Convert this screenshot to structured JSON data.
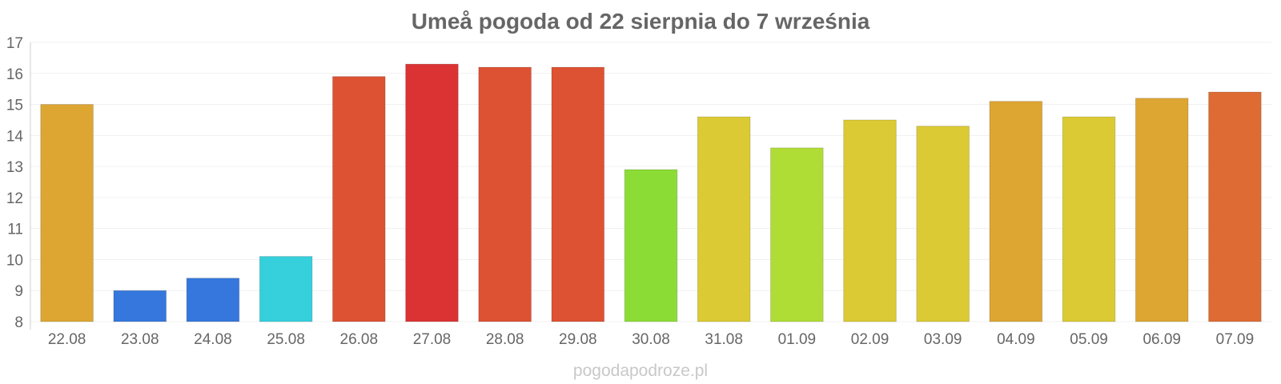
{
  "chart_data": {
    "type": "bar",
    "title": "Umeå pogoda od 22 sierpnia do 7 września",
    "xlabel": "",
    "ylabel": "",
    "ylim": [
      8,
      17
    ],
    "yticks": [
      8,
      9,
      10,
      11,
      12,
      13,
      14,
      15,
      16,
      17
    ],
    "categories": [
      "22.08",
      "23.08",
      "24.08",
      "25.08",
      "26.08",
      "27.08",
      "28.08",
      "29.08",
      "30.08",
      "31.08",
      "01.09",
      "02.09",
      "03.09",
      "04.09",
      "05.09",
      "06.09",
      "07.09"
    ],
    "values": [
      15.0,
      9.0,
      9.4,
      10.1,
      15.9,
      16.3,
      16.2,
      16.2,
      12.9,
      14.6,
      13.6,
      14.5,
      14.3,
      15.1,
      14.6,
      15.2,
      15.4
    ],
    "colors": [
      "#dda633",
      "#3577dc",
      "#3577dc",
      "#36cfdc",
      "#dd5233",
      "#db3333",
      "#dd5233",
      "#dd5233",
      "#8cdc36",
      "#dbca33",
      "#b0dc36",
      "#dbca33",
      "#dbca33",
      "#dda633",
      "#dbca33",
      "#dda633",
      "#dd6b33"
    ],
    "grid": true,
    "legend": "none"
  },
  "footer": {
    "watermark": "pogodapodroze.pl"
  }
}
